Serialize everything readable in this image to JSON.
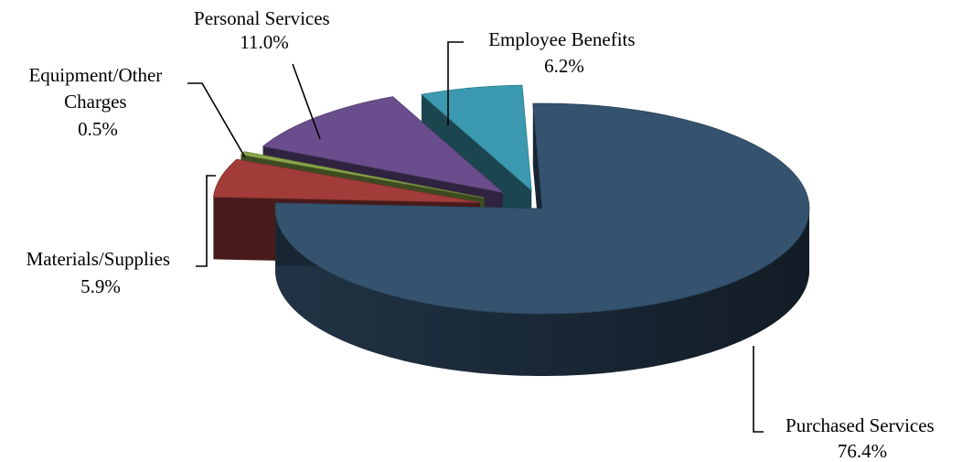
{
  "chart_data": {
    "type": "pie",
    "style": "3d-exploded",
    "legend": "none",
    "slices": [
      {
        "label": "Purchased Services",
        "value": 76.4,
        "value_label": "76.4%",
        "color": "#35536f"
      },
      {
        "label": "Materials/Supplies",
        "value": 5.9,
        "value_label": "5.9%",
        "color": "#a13c39"
      },
      {
        "label": "Equipment/Other Charges",
        "value": 0.5,
        "value_label": "0.5%",
        "color": "#8aa64a"
      },
      {
        "label": "Personal Services",
        "value": 11.0,
        "value_label": "11.0%",
        "color": "#6a4d8c"
      },
      {
        "label": "Employee Benefits",
        "value": 6.2,
        "value_label": "6.2%",
        "color": "#3b9ab0"
      }
    ]
  }
}
